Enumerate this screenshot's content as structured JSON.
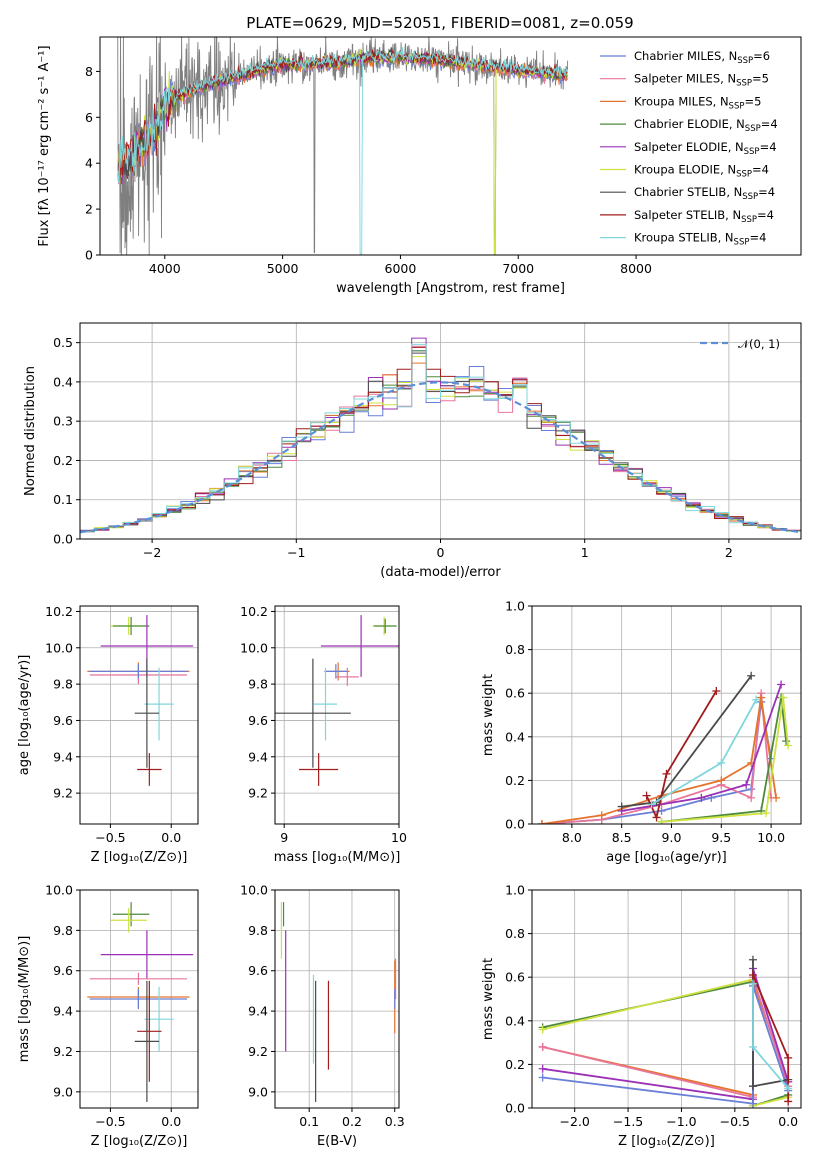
{
  "figure": {
    "title": "PLATE=0629, MJD=52051, FIBERID=0081, z=0.059"
  },
  "colors": {
    "chabrier_miles": "#6a7fd8",
    "salpeter_miles": "#e8759c",
    "kroupa_miles": "#e4742b",
    "chabrier_elodie": "#4e8a3e",
    "salpeter_elodie": "#9b31b6",
    "kroupa_elodie": "#cfe13f",
    "chabrier_stelib": "#4a4a4a",
    "salpeter_stelib": "#a11c1c",
    "kroupa_stelib": "#7fd6dc",
    "data": "#7f7f7f",
    "normal": "#5b8fd6"
  },
  "chart_data": [
    {
      "id": "spectrum",
      "type": "line",
      "xlabel": "wavelength [Angstrom, rest frame]",
      "ylabel": "Flux [fλ 10⁻¹⁷ erg cm⁻² s⁻¹ A⁻¹]",
      "xlim": [
        3450,
        9400
      ],
      "ylim": [
        0,
        9.5
      ],
      "xticks": [
        "4000",
        "5000",
        "6000",
        "7000",
        "8000"
      ],
      "yticks": [
        "0",
        "2",
        "4",
        "6",
        "8"
      ],
      "grid": false,
      "legend_position": "top-right",
      "legend": [
        {
          "label": "Chabrier MILES, N",
          "sub": "SSP",
          "tail": "=6"
        },
        {
          "label": "Salpeter MILES, N",
          "sub": "SSP",
          "tail": "=5"
        },
        {
          "label": "Kroupa MILES, N",
          "sub": "SSP",
          "tail": "=5"
        },
        {
          "label": "Chabrier ELODIE, N",
          "sub": "SSP",
          "tail": "=4"
        },
        {
          "label": "Salpeter ELODIE, N",
          "sub": "SSP",
          "tail": "=4"
        },
        {
          "label": "Kroupa ELODIE, N",
          "sub": "SSP",
          "tail": "=4"
        },
        {
          "label": "Chabrier STELIB, N",
          "sub": "SSP",
          "tail": "=4"
        },
        {
          "label": "Salpeter STELIB, N",
          "sub": "SSP",
          "tail": "=4"
        },
        {
          "label": "Kroupa STELIB, N",
          "sub": "SSP",
          "tail": "=4"
        }
      ],
      "continuum_anchors": {
        "x": [
          3600,
          3700,
          3800,
          3900,
          4000,
          4100,
          4300,
          4500,
          4700,
          4900,
          5000,
          5200,
          5500,
          5800,
          6000,
          6300,
          6600,
          6900,
          7100,
          7300,
          7400
        ],
        "y": [
          3.8,
          4.3,
          4.8,
          5.3,
          6.5,
          6.9,
          7.3,
          7.6,
          7.9,
          8.2,
          8.3,
          8.3,
          8.4,
          8.6,
          8.6,
          8.5,
          8.3,
          8.1,
          8.0,
          7.9,
          7.8
        ]
      }
    },
    {
      "id": "residuals",
      "type": "histogram",
      "xlabel": "(data-model)/error",
      "ylabel": "Normed distribution",
      "xlim": [
        -2.5,
        2.5
      ],
      "ylim": [
        0,
        0.55
      ],
      "xticks": [
        "−2",
        "−1",
        "0",
        "1",
        "2"
      ],
      "yticks": [
        "0.0",
        "0.1",
        "0.2",
        "0.3",
        "0.4",
        "0.5"
      ],
      "grid": true,
      "legend_position": "top-right",
      "normal_label": "𝒩(0, 1)"
    },
    {
      "id": "age_vs_Z",
      "type": "errorbar",
      "xlabel": "Z [log₁₀(Z/Z⊙)]",
      "ylabel": "age  [log₁₀(age/yr)]",
      "xlim": [
        -0.75,
        0.22
      ],
      "ylim": [
        9.03,
        10.23
      ],
      "xticks": [
        "−0.5",
        "0.0"
      ],
      "xtick_values": [
        -0.5,
        0
      ],
      "yticks": [
        "9.2",
        "9.4",
        "9.6",
        "9.8",
        "10.0",
        "10.2"
      ],
      "ytick_values": [
        9.2,
        9.4,
        9.6,
        9.8,
        10.0,
        10.2
      ],
      "points": [
        {
          "series": "kroupa_elodie",
          "x": -0.35,
          "xerr": 0.15,
          "y": 10.12,
          "yerr": 0.05
        },
        {
          "series": "chabrier_elodie",
          "x": -0.33,
          "xerr": 0.15,
          "y": 10.12,
          "yerr": 0.05
        },
        {
          "series": "salpeter_elodie",
          "x": -0.2,
          "xerr": 0.38,
          "y": 10.01,
          "yerr": 0.17
        },
        {
          "series": "kroupa_miles",
          "x": -0.27,
          "xerr": 0.42,
          "y": 9.87,
          "yerr": 0.05
        },
        {
          "series": "salpeter_miles",
          "x": -0.27,
          "xerr": 0.4,
          "y": 9.85,
          "yerr": 0.05
        },
        {
          "series": "chabrier_miles",
          "x": -0.27,
          "xerr": 0.4,
          "y": 9.87,
          "yerr": 0.04
        },
        {
          "series": "kroupa_stelib",
          "x": -0.1,
          "xerr": 0.12,
          "y": 9.69,
          "yerr": 0.2
        },
        {
          "series": "chabrier_stelib",
          "x": -0.2,
          "xerr": 0.1,
          "y": 9.64,
          "yerr": 0.3
        },
        {
          "series": "salpeter_stelib",
          "x": -0.18,
          "xerr": 0.1,
          "y": 9.33,
          "yerr": 0.09
        }
      ]
    },
    {
      "id": "age_vs_mass",
      "type": "errorbar",
      "xlabel": "mass [log₁₀(M/M⊙)]",
      "ylabel": "",
      "xlim": [
        8.92,
        10.0
      ],
      "ylim": [
        9.03,
        10.23
      ],
      "xticks": [
        "9",
        "10"
      ],
      "xtick_values": [
        9,
        10
      ],
      "yticks": [
        "9.2",
        "9.4",
        "9.6",
        "9.8",
        "10.0",
        "10.2"
      ],
      "ytick_values": [
        9.2,
        9.4,
        9.6,
        9.8,
        10.0,
        10.2
      ],
      "points": [
        {
          "series": "kroupa_elodie",
          "x": 9.87,
          "xerr": 0.1,
          "y": 10.12,
          "yerr": 0.05
        },
        {
          "series": "chabrier_elodie",
          "x": 9.88,
          "xerr": 0.1,
          "y": 10.12,
          "yerr": 0.04
        },
        {
          "series": "salpeter_elodie",
          "x": 9.67,
          "xerr": 0.35,
          "y": 10.01,
          "yerr": 0.17
        },
        {
          "series": "kroupa_miles",
          "x": 9.47,
          "xerr": 0.1,
          "y": 9.87,
          "yerr": 0.05
        },
        {
          "series": "salpeter_miles",
          "x": 9.55,
          "xerr": 0.1,
          "y": 9.84,
          "yerr": 0.05
        },
        {
          "series": "chabrier_miles",
          "x": 9.45,
          "xerr": 0.1,
          "y": 9.87,
          "yerr": 0.04
        },
        {
          "series": "kroupa_stelib",
          "x": 9.36,
          "xerr": 0.1,
          "y": 9.69,
          "yerr": 0.2
        },
        {
          "series": "chabrier_stelib",
          "x": 9.25,
          "xerr": 0.33,
          "y": 9.64,
          "yerr": 0.3
        },
        {
          "series": "salpeter_stelib",
          "x": 9.3,
          "xerr": 0.17,
          "y": 9.33,
          "yerr": 0.09
        }
      ]
    },
    {
      "id": "weight_vs_age",
      "type": "line",
      "xlabel": "age  [log₁₀(age/yr)]",
      "ylabel": "mass weight",
      "xlim": [
        7.6,
        10.3
      ],
      "ylim": [
        0,
        1.0
      ],
      "xticks": [
        "8.0",
        "8.5",
        "9.0",
        "9.5",
        "10.0"
      ],
      "xtick_values": [
        8.0,
        8.5,
        9.0,
        9.5,
        10.0
      ],
      "yticks": [
        "0.0",
        "0.2",
        "0.4",
        "0.6",
        "0.8",
        "1.0"
      ],
      "ytick_values": [
        0,
        0.2,
        0.4,
        0.6,
        0.8,
        1.0
      ],
      "series": [
        {
          "name": "chabrier_miles",
          "x": [
            7.7,
            8.3,
            8.9,
            9.4,
            9.8,
            9.9,
            10.0
          ],
          "y": [
            0.0,
            0.02,
            0.06,
            0.12,
            0.16,
            0.56,
            0.3
          ]
        },
        {
          "name": "salpeter_miles",
          "x": [
            7.7,
            8.3,
            8.9,
            9.5,
            9.8,
            9.9,
            10.0
          ],
          "y": [
            0.0,
            0.02,
            0.09,
            0.18,
            0.12,
            0.6,
            0.12
          ]
        },
        {
          "name": "kroupa_miles",
          "x": [
            7.7,
            8.3,
            8.9,
            9.5,
            9.8,
            9.9,
            10.05
          ],
          "y": [
            0.0,
            0.04,
            0.13,
            0.2,
            0.28,
            0.58,
            0.12
          ]
        },
        {
          "name": "chabrier_elodie",
          "x": [
            8.9,
            9.9,
            10.1,
            10.15
          ],
          "y": [
            0.01,
            0.06,
            0.58,
            0.38
          ]
        },
        {
          "name": "salpeter_elodie",
          "x": [
            8.5,
            9.3,
            9.75,
            10.1
          ],
          "y": [
            0.06,
            0.12,
            0.18,
            0.64
          ]
        },
        {
          "name": "kroupa_elodie",
          "x": [
            8.9,
            9.95,
            10.12,
            10.17
          ],
          "y": [
            0.01,
            0.05,
            0.58,
            0.36
          ]
        },
        {
          "name": "chabrier_stelib",
          "x": [
            8.5,
            8.85,
            9.8
          ],
          "y": [
            0.08,
            0.1,
            0.68
          ]
        },
        {
          "name": "salpeter_stelib",
          "x": [
            8.75,
            8.85,
            8.95,
            9.45
          ],
          "y": [
            0.13,
            0.03,
            0.23,
            0.61
          ]
        },
        {
          "name": "kroupa_stelib",
          "x": [
            8.8,
            9.5,
            9.85
          ],
          "y": [
            0.09,
            0.28,
            0.57
          ]
        }
      ]
    },
    {
      "id": "mass_vs_Z",
      "type": "errorbar",
      "xlabel": "Z [log₁₀(Z/Z⊙)]",
      "ylabel": "mass [log₁₀(M/M⊙)]",
      "xlim": [
        -0.75,
        0.22
      ],
      "ylim": [
        8.92,
        10.0
      ],
      "xticks": [
        "−0.5",
        "0.0"
      ],
      "xtick_values": [
        -0.5,
        0
      ],
      "yticks": [
        "9.0",
        "9.2",
        "9.4",
        "9.6",
        "9.8",
        "10.0"
      ],
      "ytick_values": [
        9.0,
        9.2,
        9.4,
        9.6,
        9.8,
        10.0
      ],
      "points": [
        {
          "series": "chabrier_elodie",
          "x": -0.33,
          "xerr": 0.15,
          "y": 9.88,
          "yerr": 0.06
        },
        {
          "series": "kroupa_elodie",
          "x": -0.35,
          "xerr": 0.15,
          "y": 9.85,
          "yerr": 0.06
        },
        {
          "series": "salpeter_elodie",
          "x": -0.2,
          "xerr": 0.38,
          "y": 9.68,
          "yerr": 0.12
        },
        {
          "series": "salpeter_miles",
          "x": -0.27,
          "xerr": 0.4,
          "y": 9.56,
          "yerr": 0.03
        },
        {
          "series": "kroupa_miles",
          "x": -0.27,
          "xerr": 0.42,
          "y": 9.47,
          "yerr": 0.05
        },
        {
          "series": "chabrier_miles",
          "x": -0.27,
          "xerr": 0.4,
          "y": 9.46,
          "yerr": 0.05
        },
        {
          "series": "kroupa_stelib",
          "x": -0.1,
          "xerr": 0.12,
          "y": 9.36,
          "yerr": 0.16
        },
        {
          "series": "salpeter_stelib",
          "x": -0.18,
          "xerr": 0.1,
          "y": 9.3,
          "yerr": 0.25
        },
        {
          "series": "chabrier_stelib",
          "x": -0.2,
          "xerr": 0.1,
          "y": 9.25,
          "yerr": 0.3
        }
      ]
    },
    {
      "id": "mass_vs_ebv",
      "type": "errorbar",
      "xlabel": "E(B-V)",
      "ylabel": "",
      "xlim": [
        0.02,
        0.31
      ],
      "ylim": [
        8.92,
        10.0
      ],
      "xticks": [
        "0.1",
        "0.2",
        "0.3"
      ],
      "xtick_values": [
        0.1,
        0.2,
        0.3
      ],
      "yticks": [
        "9.0",
        "9.2",
        "9.4",
        "9.6",
        "9.8",
        "10.0"
      ],
      "ytick_values": [
        9.0,
        9.2,
        9.4,
        9.6,
        9.8,
        10.0
      ],
      "points": [
        {
          "series": "chabrier_elodie",
          "x": 0.04,
          "xerr": 0,
          "y": 9.88,
          "yerr": 0.06
        },
        {
          "series": "kroupa_elodie",
          "x": 0.035,
          "xerr": 0,
          "y": 9.8,
          "yerr": 0.14
        },
        {
          "series": "salpeter_elodie",
          "x": 0.045,
          "xerr": 0,
          "y": 9.5,
          "yerr": 0.3
        },
        {
          "series": "chabrier_stelib",
          "x": 0.115,
          "xerr": 0,
          "y": 9.25,
          "yerr": 0.3
        },
        {
          "series": "kroupa_stelib",
          "x": 0.11,
          "xerr": 0,
          "y": 9.36,
          "yerr": 0.22
        },
        {
          "series": "salpeter_stelib",
          "x": 0.145,
          "xerr": 0,
          "y": 9.33,
          "yerr": 0.22
        },
        {
          "series": "salpeter_miles",
          "x": 0.302,
          "xerr": 0,
          "y": 9.56,
          "yerr": 0.1
        },
        {
          "series": "kroupa_miles",
          "x": 0.3,
          "xerr": 0,
          "y": 9.47,
          "yerr": 0.18
        },
        {
          "series": "chabrier_miles",
          "x": 0.3,
          "xerr": 0,
          "y": 9.46,
          "yerr": 0.05
        }
      ]
    },
    {
      "id": "weight_vs_Z",
      "type": "line",
      "xlabel": "Z [log₁₀(Z/Z⊙)]",
      "ylabel": "mass weight",
      "xlim": [
        -2.4,
        0.12
      ],
      "ylim": [
        0,
        1.0
      ],
      "xticks": [
        "−2.0",
        "−1.5",
        "−1.0",
        "−0.5",
        "0.0"
      ],
      "xtick_values": [
        -2.0,
        -1.5,
        -1.0,
        -0.5,
        0.0
      ],
      "yticks": [
        "0.0",
        "0.2",
        "0.4",
        "0.6",
        "0.8",
        "1.0"
      ],
      "ytick_values": [
        0,
        0.2,
        0.4,
        0.6,
        0.8,
        1.0
      ],
      "series": [
        {
          "name": "chabrier_elodie",
          "x": [
            -2.3,
            -0.33,
            -0.33,
            0.0
          ],
          "y": [
            0.37,
            0.58,
            0.01,
            0.06
          ]
        },
        {
          "name": "kroupa_elodie",
          "x": [
            -2.3,
            -0.33,
            -0.33,
            0.0
          ],
          "y": [
            0.36,
            0.59,
            0.01,
            0.05
          ]
        },
        {
          "name": "kroupa_miles",
          "x": [
            -2.3,
            -0.33,
            -0.33,
            0.0
          ],
          "y": [
            0.28,
            0.06,
            0.58,
            0.12
          ]
        },
        {
          "name": "salpeter_miles",
          "x": [
            -2.3,
            -0.33,
            -0.33,
            0.0
          ],
          "y": [
            0.28,
            0.05,
            0.6,
            0.1
          ]
        },
        {
          "name": "salpeter_elodie",
          "x": [
            -2.3,
            -0.33,
            -0.33,
            0.0
          ],
          "y": [
            0.18,
            0.04,
            0.64,
            0.12
          ]
        },
        {
          "name": "chabrier_miles",
          "x": [
            -2.3,
            -0.33,
            -0.33,
            0.0
          ],
          "y": [
            0.14,
            0.02,
            0.56,
            0.08
          ]
        },
        {
          "name": "chabrier_stelib",
          "x": [
            -0.33,
            -0.33,
            0.0
          ],
          "y": [
            0.68,
            0.1,
            0.13
          ]
        },
        {
          "name": "salpeter_stelib",
          "x": [
            -0.33,
            0.0,
            0.0
          ],
          "y": [
            0.61,
            0.23,
            0.03
          ]
        },
        {
          "name": "kroupa_stelib",
          "x": [
            -0.33,
            -0.33,
            0.0
          ],
          "y": [
            0.57,
            0.28,
            0.09
          ]
        }
      ]
    }
  ]
}
